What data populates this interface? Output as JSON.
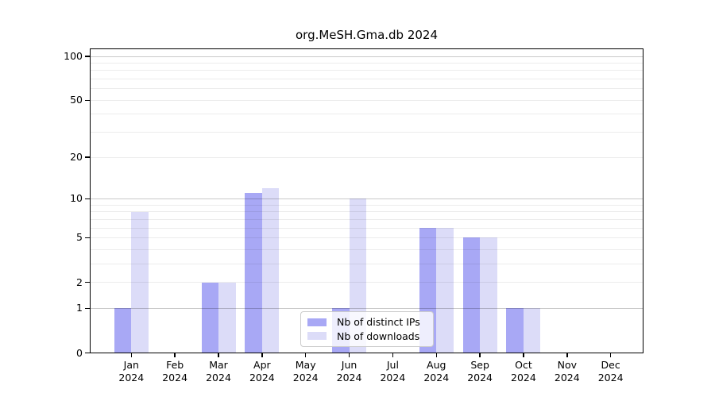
{
  "title": "org.MeSH.Gma.db 2024",
  "chart_data": {
    "type": "bar",
    "title": "org.MeSH.Gma.db 2024",
    "categories": [
      "Jan",
      "Feb",
      "Mar",
      "Apr",
      "May",
      "Jun",
      "Jul",
      "Aug",
      "Sep",
      "Oct",
      "Nov",
      "Dec"
    ],
    "year_label": "2024",
    "series": [
      {
        "name": "Nb of distinct IPs",
        "color": "#a8a8f5",
        "values": [
          1,
          0,
          2,
          11,
          0,
          1,
          0,
          6,
          5,
          1,
          0,
          0
        ]
      },
      {
        "name": "Nb of downloads",
        "color": "#dcdcf8",
        "values": [
          8,
          0,
          2,
          12,
          0,
          10,
          0,
          6,
          5,
          1,
          0,
          0
        ]
      }
    ],
    "yscale": "log10(1+v)",
    "ylim": [
      0,
      113
    ],
    "yticks": [
      100,
      50,
      20,
      10,
      5,
      2,
      1,
      0
    ],
    "ytick_labels": [
      "100",
      "50",
      "20",
      "10",
      "5",
      "2",
      "1",
      "0"
    ],
    "major_gridlines": [
      1,
      10,
      100
    ],
    "minor_gridlines": [
      2,
      3,
      4,
      5,
      6,
      7,
      8,
      9,
      20,
      30,
      40,
      50,
      60,
      70,
      80,
      90
    ],
    "grid": true,
    "legend_position": "lower-center",
    "colors": {
      "bar_distinct_ips": "#a8a8f5",
      "bar_downloads": "#dcdcf8",
      "major_grid": "rgba(0,0,0,0.21)",
      "minor_grid": "rgba(0,0,0,0.075)",
      "axis": "#000000",
      "legend_border": "#cccccc"
    }
  }
}
